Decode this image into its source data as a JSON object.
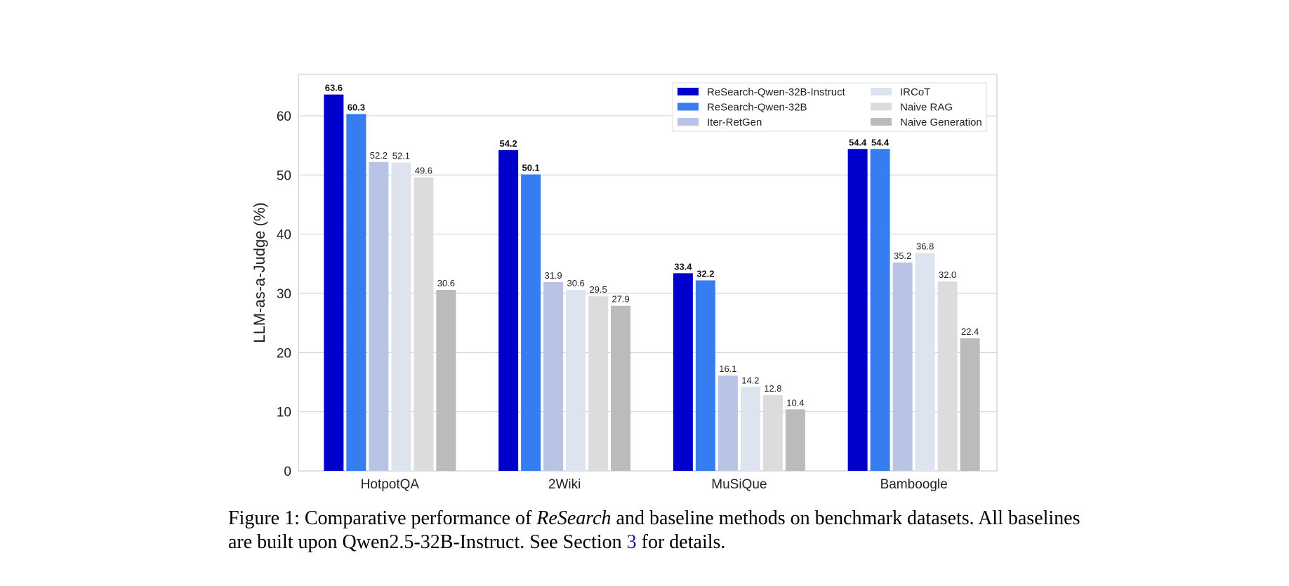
{
  "chart_data": {
    "type": "bar",
    "title": "",
    "xlabel": "",
    "ylabel": "LLM-as-a-Judge (%)",
    "ylim": [
      0,
      67
    ],
    "yticks": [
      0,
      10,
      20,
      30,
      40,
      50,
      60
    ],
    "grid": true,
    "legend_position": "top-right",
    "legend_columns": 2,
    "categories": [
      "HotpotQA",
      "2Wiki",
      "MuSiQue",
      "Bamboogle"
    ],
    "series": [
      {
        "name": "ReSearch-Qwen-32B-Instruct",
        "color": "#0000cc",
        "bold_labels": true,
        "values": [
          63.6,
          54.2,
          33.4,
          54.4
        ]
      },
      {
        "name": "ReSearch-Qwen-32B",
        "color": "#377df2",
        "bold_labels": true,
        "values": [
          60.3,
          50.1,
          32.2,
          54.4
        ]
      },
      {
        "name": "Iter-RetGen",
        "color": "#b8c3e5",
        "bold_labels": false,
        "values": [
          52.2,
          31.9,
          16.1,
          35.2
        ]
      },
      {
        "name": "IRCoT",
        "color": "#dde3ef",
        "bold_labels": false,
        "values": [
          52.1,
          30.6,
          14.2,
          36.8
        ]
      },
      {
        "name": "Naive RAG",
        "color": "#dcdcdc",
        "bold_labels": false,
        "values": [
          49.6,
          29.5,
          12.8,
          32.0
        ]
      },
      {
        "name": "Naive Generation",
        "color": "#bbbbbb",
        "bold_labels": false,
        "values": [
          30.6,
          27.9,
          10.4,
          22.4
        ]
      }
    ]
  },
  "caption": {
    "prefix": "Figure 1: Comparative performance of ",
    "method": "ReSearch",
    "middle": " and baseline methods on benchmark datasets. All baselines are built upon Qwen2.5-32B-Instruct. See Section ",
    "section_ref": "3",
    "suffix": " for details."
  }
}
